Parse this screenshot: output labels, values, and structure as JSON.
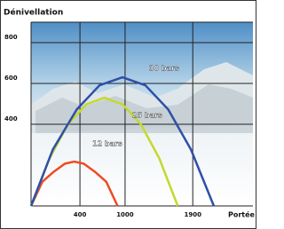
{
  "chart_data": {
    "type": "line",
    "title": "Dénivellation",
    "xlabel": "Portée",
    "xlim": [
      -250,
      2700
    ],
    "ylim": [
      0,
      900
    ],
    "xticks": [
      400,
      1000,
      1900
    ],
    "yticks": [
      400,
      600,
      800
    ],
    "grid": true,
    "series": [
      {
        "name": "12 bars",
        "color": "#f04a23",
        "x": [
          -250,
          -100,
          50,
          200,
          325,
          450,
          600,
          750,
          900
        ],
        "values": [
          0,
          118,
          167,
          207,
          217,
          207,
          167,
          118,
          0
        ]
      },
      {
        "name": "25 bars",
        "color": "#c3d92c",
        "x": [
          -250,
          -6,
          238,
          481,
          725,
          969,
          1213,
          1456,
          1700
        ],
        "values": [
          0,
          232,
          398,
          497,
          530,
          497,
          398,
          232,
          0
        ]
      },
      {
        "name": "30 bars",
        "color": "#2f4fa8",
        "x": [
          -250,
          39,
          358,
          661,
          965,
          1269,
          1573,
          1876,
          2180
        ],
        "values": [
          0,
          276,
          473,
          591,
          630,
          591,
          473,
          276,
          0
        ]
      }
    ]
  }
}
